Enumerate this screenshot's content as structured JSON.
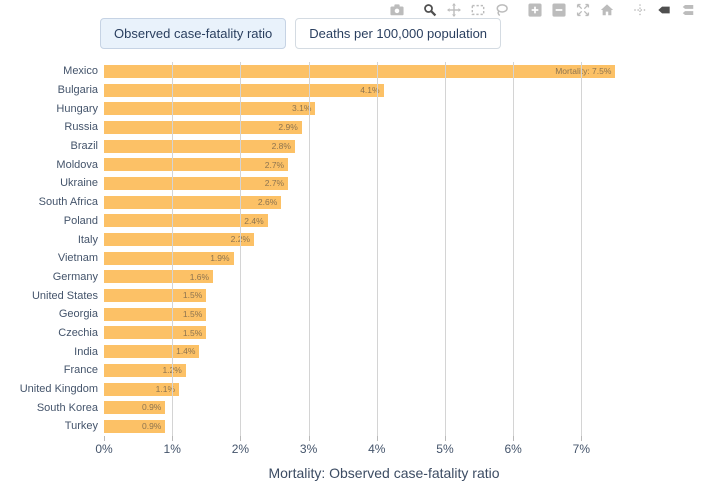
{
  "toolbar": {
    "icons": [
      {
        "name": "camera-icon",
        "active": false
      },
      {
        "name": "zoom-icon",
        "active": true
      },
      {
        "name": "pan-icon",
        "active": false
      },
      {
        "name": "box-select-icon",
        "active": false
      },
      {
        "name": "lasso-select-icon",
        "active": false
      },
      {
        "name": "zoom-in-icon",
        "active": false
      },
      {
        "name": "zoom-out-icon",
        "active": false
      },
      {
        "name": "autoscale-icon",
        "active": false
      },
      {
        "name": "home-icon",
        "active": false
      },
      {
        "name": "spikelines-icon",
        "active": false
      },
      {
        "name": "hover-closest-icon",
        "active": true
      },
      {
        "name": "hover-compare-icon",
        "active": false
      }
    ]
  },
  "buttons": [
    {
      "label": "Observed case-fatality ratio",
      "selected": true
    },
    {
      "label": "Deaths per 100,000 population",
      "selected": false
    }
  ],
  "chart_data": {
    "type": "bar",
    "orientation": "horizontal",
    "title": "",
    "xlabel": "Mortality: Observed case-fatality ratio",
    "ylabel": "",
    "categories": [
      "Mexico",
      "Bulgaria",
      "Hungary",
      "Russia",
      "Brazil",
      "Moldova",
      "Ukraine",
      "South Africa",
      "Poland",
      "Italy",
      "Vietnam",
      "Germany",
      "United States",
      "Georgia",
      "Czechia",
      "India",
      "France",
      "United Kingdom",
      "South Korea",
      "Turkey"
    ],
    "values": [
      7.5,
      4.1,
      3.1,
      2.9,
      2.8,
      2.7,
      2.7,
      2.6,
      2.4,
      2.2,
      1.9,
      1.6,
      1.5,
      1.5,
      1.5,
      1.4,
      1.2,
      1.1,
      0.9,
      0.9
    ],
    "bar_labels": [
      "Mortality: 7.5%",
      "4.1%",
      "3.1%",
      "2.9%",
      "2.8%",
      "2.7%",
      "2.7%",
      "2.6%",
      "2.4%",
      "2.2%",
      "1.9%",
      "1.6%",
      "1.5%",
      "1.5%",
      "1.5%",
      "1.4%",
      "1.2%",
      "1.1%",
      "0.9%",
      "0.9%"
    ],
    "x_ticks": [
      "0%",
      "1%",
      "2%",
      "3%",
      "4%",
      "5%",
      "6%",
      "7%"
    ],
    "x_tick_values": [
      0,
      1,
      2,
      3,
      4,
      5,
      6,
      7
    ],
    "xlim": [
      0,
      8.3
    ],
    "grid": true,
    "legend": "none",
    "bar_color": "#fcc166",
    "bar_label_color": "#8d7450",
    "grid_color": "#d4d4d4",
    "axis_text_color": "#44546b"
  }
}
